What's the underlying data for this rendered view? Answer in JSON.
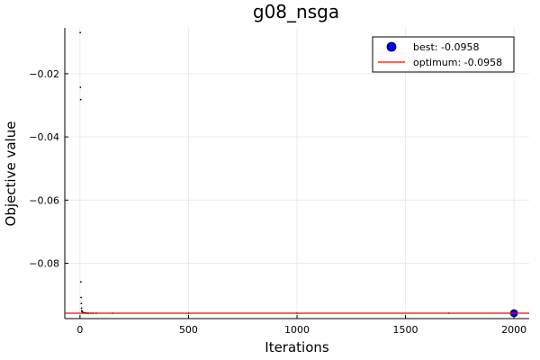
{
  "chart_data": {
    "type": "scatter",
    "title": "g08_nsga",
    "xlabel": "Iterations",
    "ylabel": "Objective value",
    "xlim": [
      -70,
      2070
    ],
    "ylim": [
      -0.0975,
      -0.0055
    ],
    "xticks": [
      0,
      500,
      1000,
      1500,
      2000
    ],
    "yticks": [
      -0.08,
      -0.06,
      -0.04,
      -0.02
    ],
    "xtick_labels": [
      "0",
      "500",
      "1000",
      "1500",
      "2000"
    ],
    "ytick_labels": [
      "−0.08",
      "−0.06",
      "−0.04",
      "−0.02"
    ],
    "grid": true,
    "legend": "top-right",
    "series": [
      {
        "name": "",
        "kind": "trace",
        "color": "#000000",
        "points": [
          [
            1,
            -0.007
          ],
          [
            2,
            -0.0243
          ],
          [
            3,
            -0.0282
          ],
          [
            4,
            -0.0859
          ],
          [
            5,
            -0.0908
          ],
          [
            6,
            -0.0927
          ],
          [
            7,
            -0.0942
          ],
          [
            8,
            -0.095
          ],
          [
            10,
            -0.0953
          ],
          [
            12,
            -0.0955
          ],
          [
            15,
            -0.0956
          ],
          [
            18,
            -0.0957
          ],
          [
            22,
            -0.0957
          ],
          [
            26,
            -0.0957
          ],
          [
            30,
            -0.0958
          ],
          [
            35,
            -0.0958
          ],
          [
            40,
            -0.0958
          ],
          [
            50,
            -0.0958
          ],
          [
            60,
            -0.0958
          ],
          [
            75,
            -0.0958
          ],
          [
            150,
            -0.0958
          ],
          [
            500,
            -0.0958
          ],
          [
            1000,
            -0.0958
          ],
          [
            1700,
            -0.0958
          ],
          [
            2000,
            -0.0958
          ]
        ]
      },
      {
        "name": "best: -0.0958",
        "kind": "best-point",
        "color": "#0000ff",
        "points": [
          [
            2000,
            -0.0958
          ]
        ]
      },
      {
        "name": "optimum: -0.0958",
        "kind": "hline",
        "color": "#ff0000",
        "y": -0.0958
      }
    ]
  }
}
